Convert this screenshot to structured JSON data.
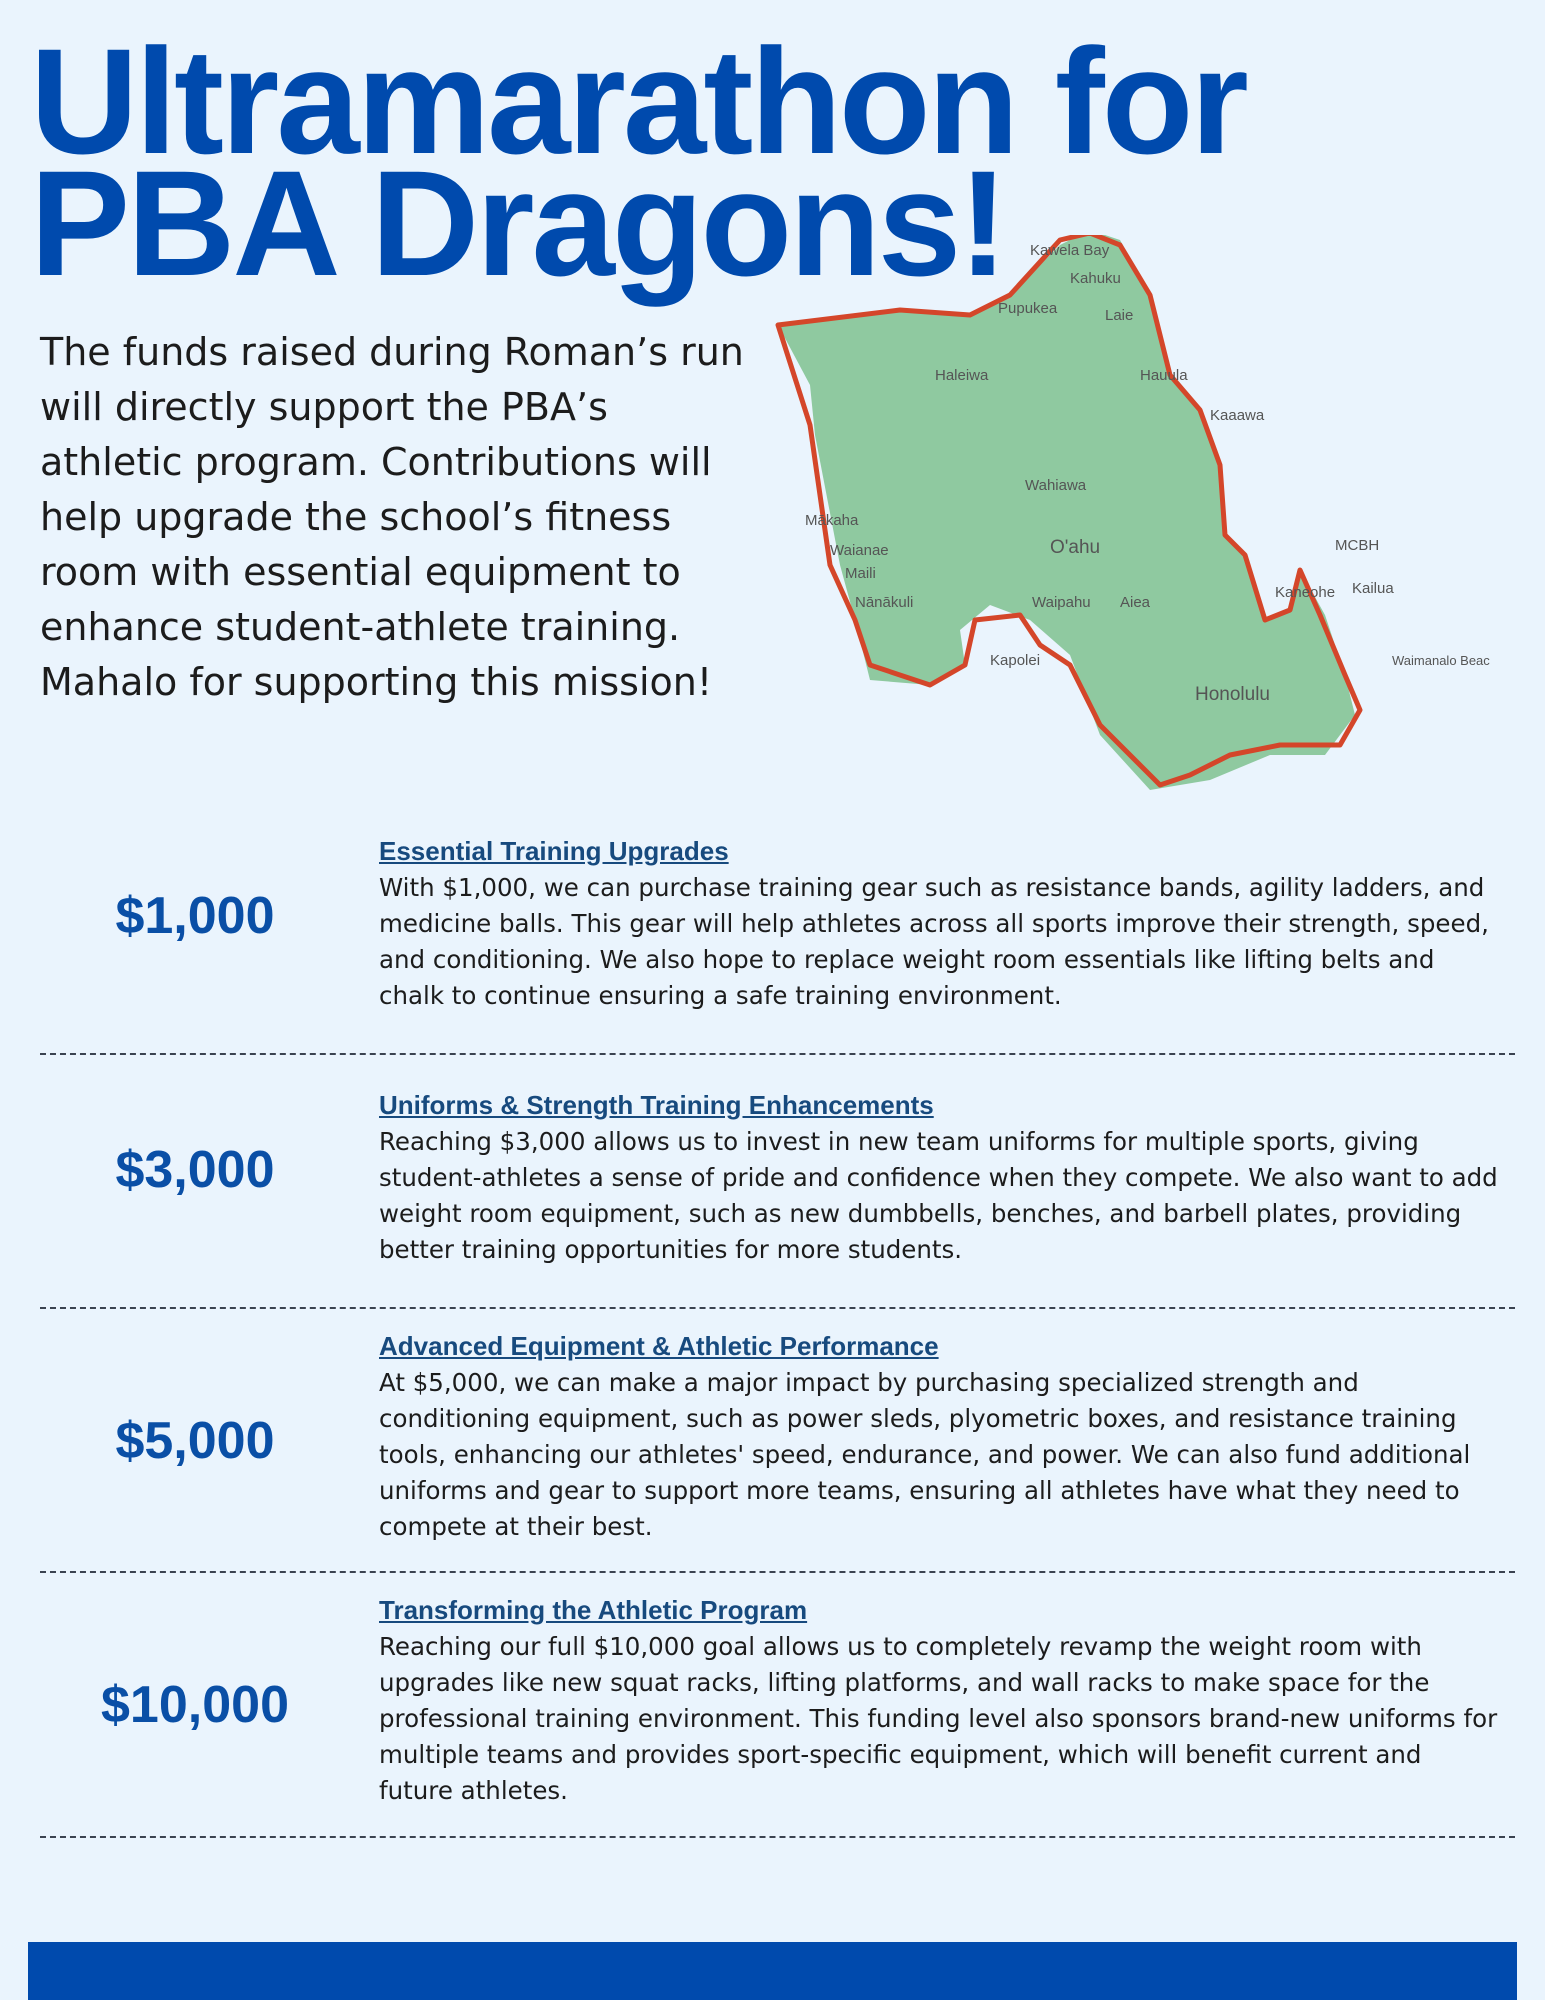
{
  "title": {
    "line1": "Ultramarathon for",
    "line2": "PBA Dragons!"
  },
  "intro": "The funds raised during Roman’s run will directly support the PBA’s athletic program. Contributions will help upgrade the school’s fitness room with essential equipment to enhance student-athlete training. Mahalo for supporting this mission!",
  "map": {
    "labels": [
      "Kawela Bay",
      "Kahuku",
      "Pupukea",
      "Laie",
      "Haleiwa",
      "Hauula",
      "Kaaawa",
      "Wahiawa",
      "Mākaha",
      "Waianae",
      "Maili",
      "Nānākuli",
      "O'ahu",
      "Waipahu",
      "Aiea",
      "Kapolei",
      "Kaneohe",
      "Kailua",
      "MCBH",
      "Waimanalo Beach",
      "Honolulu"
    ],
    "route_color": "#d4462a",
    "land_color": "#8fc9a0"
  },
  "tiers": [
    {
      "amount": "$1,000",
      "heading": "Essential Training Upgrades",
      "body": "With $1,000, we can purchase training gear such as resistance bands, agility ladders, and medicine balls. This gear will help athletes across all sports improve their strength, speed, and conditioning. We also hope to replace weight room essentials like lifting belts and chalk to continue ensuring a safe training environment."
    },
    {
      "amount": "$3,000",
      "heading": "Uniforms & Strength Training Enhancements",
      "body": "Reaching $3,000 allows us to invest in new team uniforms for multiple sports, giving student-athletes a sense of pride and confidence when they compete. We also want to add weight room equipment, such as new dumbbells, benches, and barbell plates, providing better training opportunities for more students."
    },
    {
      "amount": "$5,000",
      "heading": "Advanced Equipment & Athletic Performance",
      "body": "At $5,000, we can make a major impact by purchasing specialized strength and conditioning equipment, such as power sleds, plyometric boxes, and resistance training tools, enhancing our athletes' speed, endurance, and power. We can also fund additional uniforms and gear to support more teams, ensuring all athletes have what they need to compete at their best."
    },
    {
      "amount": "$10,000",
      "heading": "Transforming the Athletic Program",
      "body": "Reaching our full $10,000 goal allows us to completely revamp the weight room with upgrades like new squat racks, lifting platforms, and wall racks to make space for the professional training environment. This funding level also sponsors brand-new uniforms for multiple teams and provides sport-specific equipment, which will benefit current and future athletes."
    }
  ],
  "colors": {
    "brand": "#004aad",
    "background": "#eaf4fd"
  }
}
